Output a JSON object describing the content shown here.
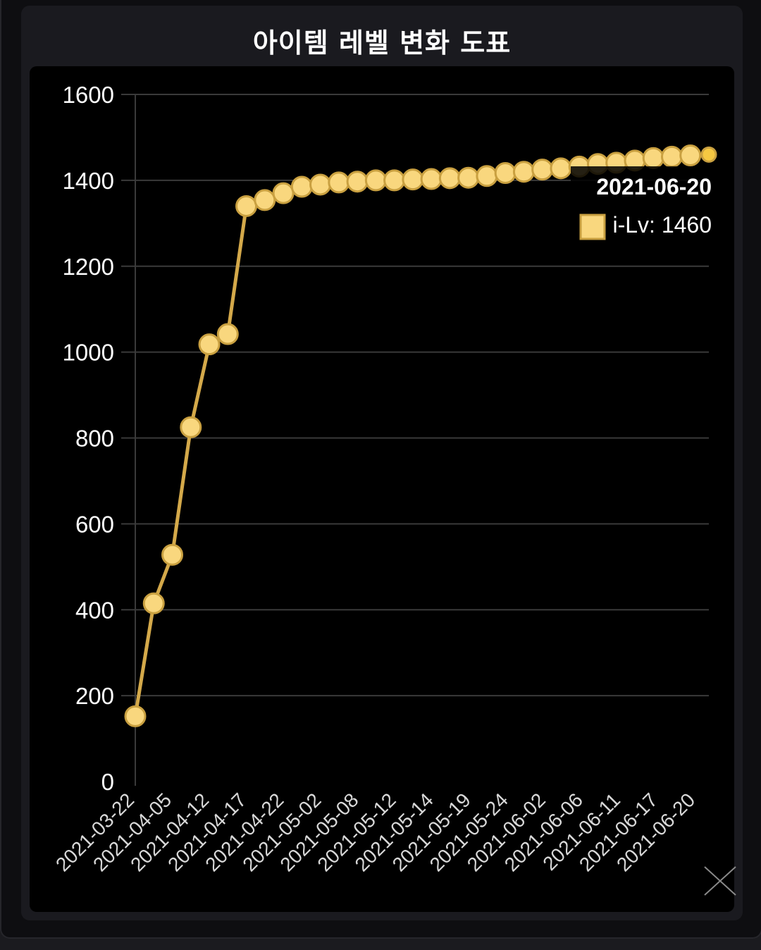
{
  "title": "아이템 레벨 변화 도표",
  "chart_data": {
    "type": "line",
    "title": "아이템 레벨 변화 도표",
    "xlabel": "",
    "ylabel": "",
    "ylim": [
      0,
      1600
    ],
    "yticks": [
      0,
      200,
      400,
      600,
      800,
      1000,
      1200,
      1400,
      1600
    ],
    "grid": true,
    "x_tick_labels": [
      "2021-03-22",
      "2021-04-05",
      "2021-04-12",
      "2021-04-17",
      "2021-04-22",
      "2021-05-02",
      "2021-05-08",
      "2021-05-12",
      "2021-05-14",
      "2021-05-19",
      "2021-05-24",
      "2021-06-02",
      "2021-06-06",
      "2021-06-11",
      "2021-06-17",
      "2021-06-20"
    ],
    "series": [
      {
        "name": "i-Lv",
        "color": "#f9d77e",
        "line_color": "#d4a94a",
        "values": [
          152,
          415,
          528,
          825,
          1018,
          1042,
          1340,
          1354,
          1370,
          1385,
          1390,
          1395,
          1397,
          1400,
          1400,
          1402,
          1403,
          1405,
          1406,
          1410,
          1417,
          1420,
          1425,
          1428,
          1432,
          1438,
          1441,
          1446,
          1452,
          1455,
          1458,
          1460
        ]
      }
    ],
    "tooltip": {
      "date": "2021-06-20",
      "series_label": "i-Lv",
      "value": 1460,
      "text": "i-Lv: 1460"
    }
  },
  "colors": {
    "background": "#000000",
    "panel": "#1a1a1f",
    "grid": "#3a3a3a",
    "axis_text": "#ffffff",
    "x_label_text": "#d8d8d8",
    "point_fill": "#f9d77e",
    "point_stroke": "#c9a040",
    "close_icon": "#8a8a8a"
  },
  "icons": {
    "close": "close-icon"
  }
}
